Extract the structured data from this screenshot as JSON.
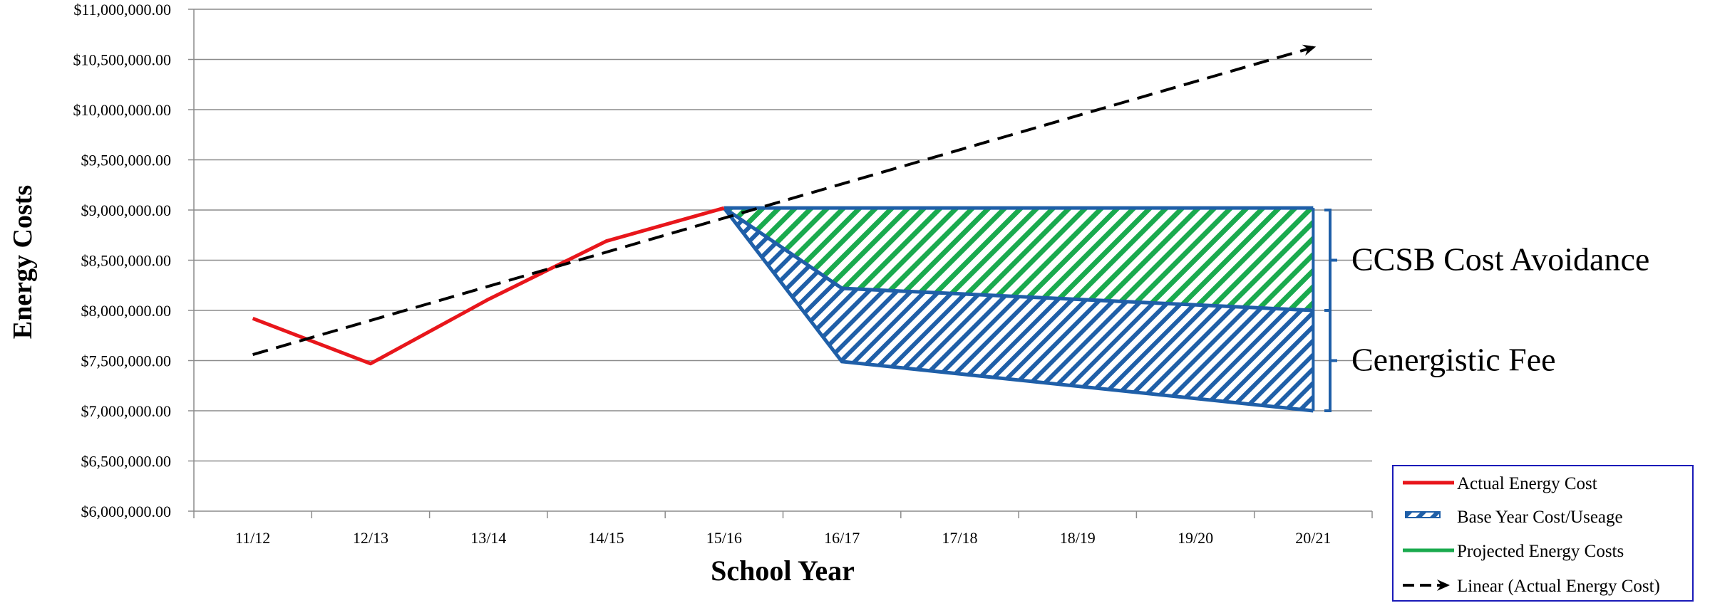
{
  "chart_data": {
    "type": "line",
    "categories": [
      "11/12",
      "12/13",
      "13/14",
      "14/15",
      "15/16",
      "16/17",
      "17/18",
      "18/19",
      "19/20",
      "20/21"
    ],
    "xlabel": "School Year",
    "ylabel": "Energy Costs",
    "ylim": [
      6000000,
      11000000
    ],
    "y_ticks": [
      {
        "value": 6000000,
        "label": "$6,000,000.00"
      },
      {
        "value": 6500000,
        "label": "$6,500,000.00"
      },
      {
        "value": 7000000,
        "label": "$7,000,000.00"
      },
      {
        "value": 7500000,
        "label": "$7,500,000.00"
      },
      {
        "value": 8000000,
        "label": "$8,000,000.00"
      },
      {
        "value": 8500000,
        "label": "$8,500,000.00"
      },
      {
        "value": 9000000,
        "label": "$9,000,000.00"
      },
      {
        "value": 9500000,
        "label": "$9,500,000.00"
      },
      {
        "value": 10000000,
        "label": "$10,000,000.00"
      },
      {
        "value": 10500000,
        "label": "$10,500,000.00"
      },
      {
        "value": 11000000,
        "label": "$11,000,000.00"
      }
    ],
    "grid": true,
    "legend_position": "bottom-right",
    "series": [
      {
        "name": "Actual Energy Cost",
        "color": "#e8161b",
        "points": [
          [
            0,
            7920000
          ],
          [
            1,
            7470000
          ],
          [
            2,
            8110000
          ],
          [
            3,
            8690000
          ],
          [
            4,
            9020000
          ]
        ]
      },
      {
        "name": "Base Year Cost/Useage",
        "color": "#1f5fa8",
        "points": [
          [
            4,
            9020000
          ],
          [
            5,
            9020000
          ],
          [
            6,
            9020000
          ],
          [
            7,
            9020000
          ],
          [
            8,
            9020000
          ],
          [
            9,
            9020000
          ]
        ]
      },
      {
        "name": "Projected Energy Costs",
        "color": "#1aaa4e",
        "points": [
          [
            4,
            9020000
          ],
          [
            5,
            8220000
          ],
          [
            9,
            8000000
          ]
        ]
      },
      {
        "name": "Linear (Actual Energy Cost)",
        "color": "#000000",
        "points": [
          [
            0,
            7560000
          ],
          [
            9,
            10620000
          ]
        ]
      }
    ],
    "band_lower": {
      "color": "#1f5fa8",
      "points": [
        [
          4,
          9020000
        ],
        [
          5,
          7490000
        ],
        [
          9,
          7000000
        ]
      ]
    },
    "annotations": [
      {
        "text": "CCSB Cost Avoidance",
        "range": [
          8000000,
          9000000
        ]
      },
      {
        "text": "Cenergistic Fee",
        "range": [
          7000000,
          8000000
        ]
      }
    ]
  }
}
